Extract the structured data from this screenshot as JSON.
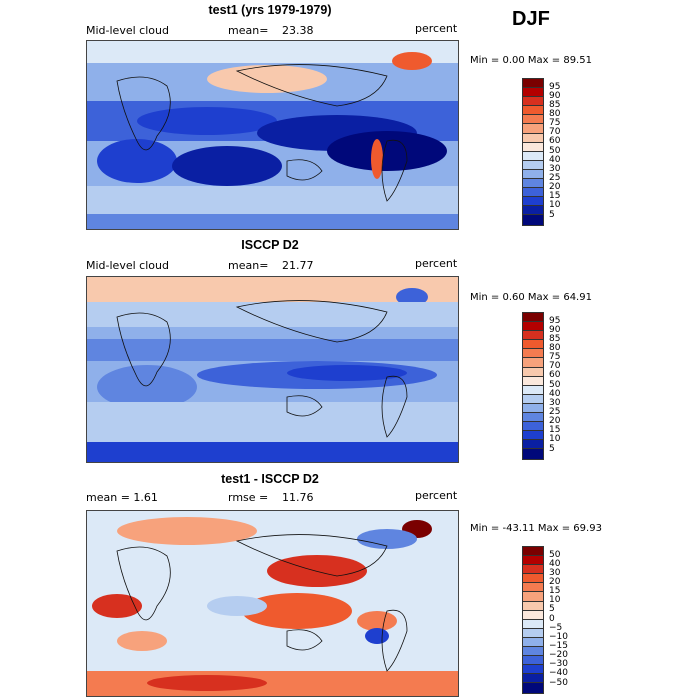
{
  "season": "DJF",
  "panels": [
    {
      "title": "test1 (yrs 1979-1979)",
      "left_label": "Mid-level cloud",
      "stat_label": "mean=",
      "stat_value": "23.38",
      "units": "percent",
      "min_max": "Min =    0.00 Max =   89.51",
      "ticks": [
        "95",
        "90",
        "85",
        "80",
        "75",
        "70",
        "60",
        "50",
        "40",
        "30",
        "25",
        "20",
        "15",
        "10",
        "5"
      ]
    },
    {
      "title": "ISCCP D2",
      "left_label": "Mid-level cloud",
      "stat_label": "mean=",
      "stat_value": "21.77",
      "units": "percent",
      "min_max": "Min =    0.60 Max =   64.91",
      "ticks": [
        "95",
        "90",
        "85",
        "80",
        "75",
        "70",
        "60",
        "50",
        "40",
        "30",
        "25",
        "20",
        "15",
        "10",
        "5"
      ]
    },
    {
      "title": "test1 - ISCCP D2",
      "left_label": "mean =     1.61",
      "stat_label": "rmse =",
      "stat_value": "11.76",
      "units": "percent",
      "min_max": "Min = -43.11 Max =   69.93",
      "ticks": [
        "50",
        "40",
        "30",
        "20",
        "15",
        "10",
        "5",
        "0",
        "−5",
        "−10",
        "−15",
        "−20",
        "−30",
        "−40",
        "−50"
      ]
    }
  ],
  "colors": {
    "abs_scale": [
      "#7a0000",
      "#b30000",
      "#d7301f",
      "#ef5a2e",
      "#f47b50",
      "#f7a27c",
      "#f8c9ad",
      "#fbe8dc",
      "#dce9f7",
      "#b5cdf0",
      "#8fb0ea",
      "#5f85e0",
      "#3d62d9",
      "#1e3fcf",
      "#0a1fa3",
      "#00087a"
    ],
    "diff_scale": [
      "#7a0000",
      "#b30000",
      "#d7301f",
      "#ef5a2e",
      "#f47b50",
      "#f7a27c",
      "#f8c9ad",
      "#fbe8dc",
      "#dce9f7",
      "#b5cdf0",
      "#8fb0ea",
      "#5f85e0",
      "#3d62d9",
      "#1e3fcf",
      "#0a1fa3",
      "#00087a"
    ]
  }
}
